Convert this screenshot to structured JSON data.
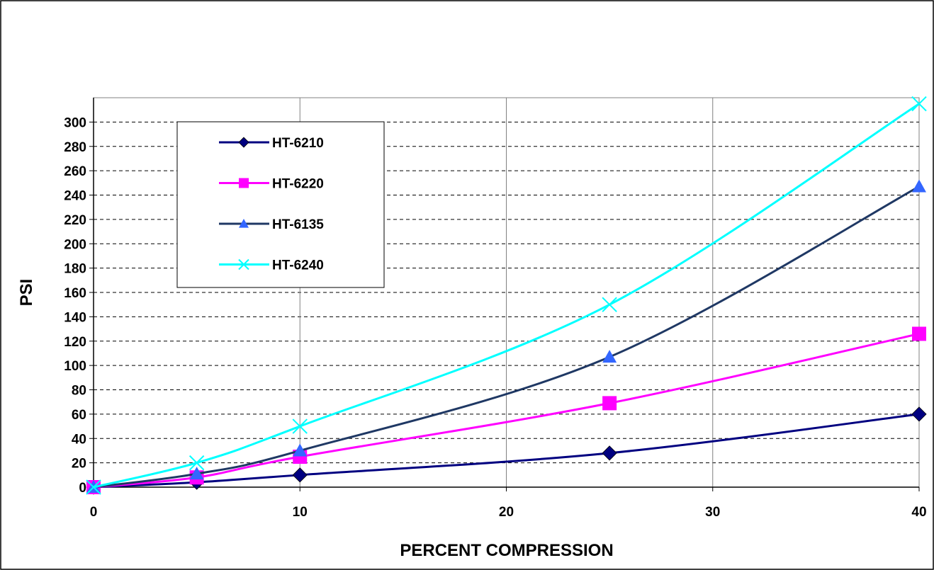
{
  "chart_data": {
    "type": "line",
    "title": "",
    "xlabel": "PERCENT COMPRESSION",
    "ylabel": "PSI",
    "xlim": [
      0,
      40
    ],
    "ylim": [
      0,
      320
    ],
    "x_ticks": [
      0,
      10,
      20,
      30,
      40
    ],
    "y_ticks": [
      0,
      20,
      40,
      60,
      80,
      100,
      120,
      140,
      160,
      180,
      200,
      220,
      240,
      260,
      280,
      300
    ],
    "grid": {
      "vertical": "solid",
      "horizontal": "dashed"
    },
    "legend_position": "top-left",
    "series": [
      {
        "name": "HT-6210",
        "color": "#000080",
        "marker": "diamond",
        "x": [
          0,
          5,
          10,
          25,
          40
        ],
        "y": [
          0,
          4,
          10,
          28,
          60
        ]
      },
      {
        "name": "HT-6220",
        "color": "#ff00ff",
        "marker": "square",
        "x": [
          0,
          5,
          10,
          25,
          40
        ],
        "y": [
          0,
          8,
          25,
          69,
          126
        ]
      },
      {
        "name": "HT-6135",
        "color": "#1f3864",
        "marker_color": "#3366ff",
        "marker": "triangle",
        "x": [
          0,
          5,
          10,
          25,
          40
        ],
        "y": [
          0,
          11,
          30,
          107,
          247
        ]
      },
      {
        "name": "HT-6240",
        "color": "#00ffff",
        "marker": "x",
        "x": [
          0,
          5,
          10,
          25,
          40
        ],
        "y": [
          0,
          20,
          50,
          150,
          315
        ]
      }
    ]
  }
}
